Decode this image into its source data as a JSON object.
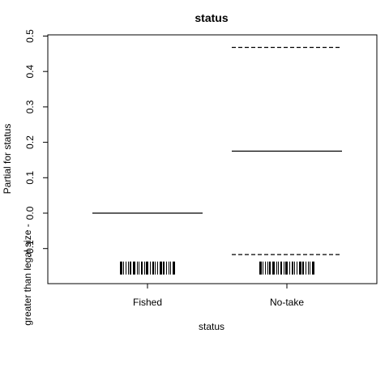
{
  "chart_data": {
    "type": "line",
    "title": "status",
    "xlabel": "status",
    "ylabel": "Partial for status",
    "ylabel2": "greater than legal size -",
    "categories": [
      "Fished",
      "No-take"
    ],
    "ylim": [
      -0.2,
      0.5
    ],
    "yticks": [
      "-0.1",
      "0.0",
      "0.1",
      "0.2",
      "0.3",
      "0.4",
      "0.5"
    ],
    "series": [
      {
        "name": "fit",
        "style": "solid",
        "values": [
          0.0,
          0.175
        ]
      },
      {
        "name": "upper",
        "style": "dashed",
        "values": [
          null,
          0.468
        ]
      },
      {
        "name": "lower",
        "style": "dashed",
        "values": [
          null,
          -0.117
        ]
      }
    ],
    "rug": {
      "level": -0.155,
      "categories": [
        "Fished",
        "No-take"
      ]
    },
    "grid": false,
    "legend": "none"
  }
}
